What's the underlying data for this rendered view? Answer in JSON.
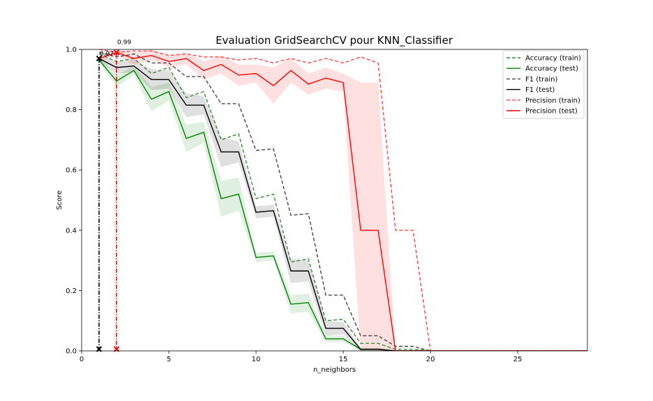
{
  "chart_data": {
    "type": "line",
    "title": "Evaluation GridSearchCV pour KNN_Classifier",
    "xlabel": "n_neighbors",
    "ylabel": "Score",
    "xlim": [
      0,
      29
    ],
    "ylim": [
      0,
      1.0
    ],
    "xticks": [
      0,
      5,
      10,
      15,
      20,
      25
    ],
    "yticks": [
      0.0,
      0.2,
      0.4,
      0.6,
      0.8,
      1.0
    ],
    "legend_position": "top-right",
    "grid": false,
    "x": [
      1,
      2,
      3,
      4,
      5,
      6,
      7,
      8,
      9,
      10,
      11,
      12,
      13,
      14,
      15,
      16,
      17,
      18,
      19,
      20,
      21,
      22,
      23,
      24,
      25,
      26,
      27,
      28,
      29
    ],
    "series": [
      {
        "name": "Accuracy (train)",
        "color": "#3a8a3a",
        "dash": true,
        "values": [
          0.985,
          0.96,
          0.97,
          0.92,
          0.94,
          0.84,
          0.86,
          0.7,
          0.72,
          0.505,
          0.52,
          0.295,
          0.305,
          0.1,
          0.105,
          0.025,
          0.025,
          0.005,
          0.005,
          0,
          0,
          0,
          0,
          0,
          0,
          0,
          0,
          0,
          0
        ]
      },
      {
        "name": "Accuracy (test)",
        "color": "#008000",
        "dash": false,
        "values": [
          0.965,
          0.895,
          0.93,
          0.835,
          0.86,
          0.705,
          0.725,
          0.505,
          0.52,
          0.31,
          0.315,
          0.155,
          0.16,
          0.04,
          0.04,
          0.005,
          0.005,
          0,
          0,
          0,
          0,
          0,
          0,
          0,
          0,
          0,
          0,
          0,
          0
        ],
        "band": [
          [
            0.955,
            0.975
          ],
          [
            0.875,
            0.915
          ],
          [
            0.915,
            0.945
          ],
          [
            0.795,
            0.875
          ],
          [
            0.83,
            0.89
          ],
          [
            0.66,
            0.75
          ],
          [
            0.69,
            0.76
          ],
          [
            0.445,
            0.565
          ],
          [
            0.465,
            0.575
          ],
          [
            0.295,
            0.325
          ],
          [
            0.3,
            0.33
          ],
          [
            0.125,
            0.185
          ],
          [
            0.13,
            0.19
          ],
          [
            0.03,
            0.05
          ],
          [
            0.03,
            0.05
          ],
          [
            0,
            0.01
          ],
          [
            0,
            0.01
          ],
          [
            0,
            0
          ],
          [
            0,
            0
          ],
          [
            0,
            0
          ],
          [
            0,
            0
          ],
          [
            0,
            0
          ],
          [
            0,
            0
          ],
          [
            0,
            0
          ],
          [
            0,
            0
          ],
          [
            0,
            0
          ],
          [
            0,
            0
          ],
          [
            0,
            0
          ],
          [
            0,
            0
          ]
        ]
      },
      {
        "name": "F1 (train)",
        "color": "#444444",
        "dash": true,
        "values": [
          0.99,
          0.975,
          0.985,
          0.955,
          0.955,
          0.91,
          0.91,
          0.82,
          0.82,
          0.665,
          0.67,
          0.45,
          0.455,
          0.185,
          0.185,
          0.05,
          0.05,
          0.015,
          0.015,
          0,
          0,
          0,
          0,
          0,
          0,
          0,
          0,
          0,
          0
        ]
      },
      {
        "name": "F1 (test)",
        "color": "#000000",
        "dash": false,
        "values": [
          0.97,
          0.94,
          0.945,
          0.9,
          0.9,
          0.815,
          0.815,
          0.66,
          0.66,
          0.46,
          0.465,
          0.265,
          0.265,
          0.075,
          0.075,
          0.005,
          0.005,
          0,
          0,
          0,
          0,
          0,
          0,
          0,
          0,
          0,
          0,
          0,
          0
        ],
        "band": [
          [
            0.96,
            0.98
          ],
          [
            0.92,
            0.96
          ],
          [
            0.925,
            0.965
          ],
          [
            0.865,
            0.935
          ],
          [
            0.87,
            0.93
          ],
          [
            0.775,
            0.855
          ],
          [
            0.785,
            0.845
          ],
          [
            0.61,
            0.71
          ],
          [
            0.625,
            0.695
          ],
          [
            0.44,
            0.48
          ],
          [
            0.445,
            0.485
          ],
          [
            0.225,
            0.305
          ],
          [
            0.23,
            0.3
          ],
          [
            0.05,
            0.1
          ],
          [
            0.055,
            0.095
          ],
          [
            0,
            0.01
          ],
          [
            0,
            0.01
          ],
          [
            0,
            0
          ],
          [
            0,
            0
          ],
          [
            0,
            0
          ],
          [
            0,
            0
          ],
          [
            0,
            0
          ],
          [
            0,
            0
          ],
          [
            0,
            0
          ],
          [
            0,
            0
          ],
          [
            0,
            0
          ],
          [
            0,
            0
          ],
          [
            0,
            0
          ],
          [
            0,
            0
          ]
        ]
      },
      {
        "name": "Precision (train)",
        "color": "#ff4444",
        "dash": true,
        "values": [
          1.0,
          0.99,
          0.995,
          0.995,
          0.98,
          0.985,
          0.975,
          0.975,
          0.965,
          0.97,
          0.955,
          0.97,
          0.955,
          0.97,
          0.955,
          0.975,
          0.955,
          0.4,
          0.4,
          0,
          0,
          0,
          0,
          0,
          0,
          0,
          0,
          0,
          0
        ]
      },
      {
        "name": "Precision (test)",
        "color": "#ff0000",
        "dash": false,
        "values": [
          0.97,
          0.99,
          0.97,
          0.98,
          0.96,
          0.97,
          0.93,
          0.95,
          0.915,
          0.92,
          0.88,
          0.93,
          0.885,
          0.905,
          0.89,
          0.4,
          0.4,
          0.0,
          0,
          0,
          0,
          0,
          0,
          0,
          0,
          0,
          0,
          0,
          0
        ],
        "band": [
          [
            0.96,
            0.98
          ],
          [
            0.98,
            1.0
          ],
          [
            0.95,
            0.99
          ],
          [
            0.965,
            1.0
          ],
          [
            0.94,
            0.98
          ],
          [
            0.95,
            0.99
          ],
          [
            0.9,
            0.96
          ],
          [
            0.92,
            0.98
          ],
          [
            0.88,
            0.95
          ],
          [
            0.89,
            0.95
          ],
          [
            0.82,
            0.94
          ],
          [
            0.89,
            0.97
          ],
          [
            0.85,
            0.92
          ],
          [
            0.87,
            0.94
          ],
          [
            0.86,
            0.92
          ],
          [
            0.0,
            0.89
          ],
          [
            0.0,
            0.89
          ],
          [
            0,
            0
          ],
          [
            0,
            0
          ],
          [
            0,
            0
          ],
          [
            0,
            0
          ],
          [
            0,
            0
          ],
          [
            0,
            0
          ],
          [
            0,
            0
          ],
          [
            0,
            0
          ],
          [
            0,
            0
          ],
          [
            0,
            0
          ],
          [
            0,
            0
          ],
          [
            0,
            0
          ]
        ]
      }
    ],
    "annotations": [
      {
        "text": "0.97",
        "x": 1,
        "y": 0.97,
        "color": "#000000",
        "marker": "x"
      },
      {
        "text": "0.99",
        "x": 2,
        "y": 0.99,
        "color": "#ff0000",
        "marker": "x"
      }
    ]
  }
}
